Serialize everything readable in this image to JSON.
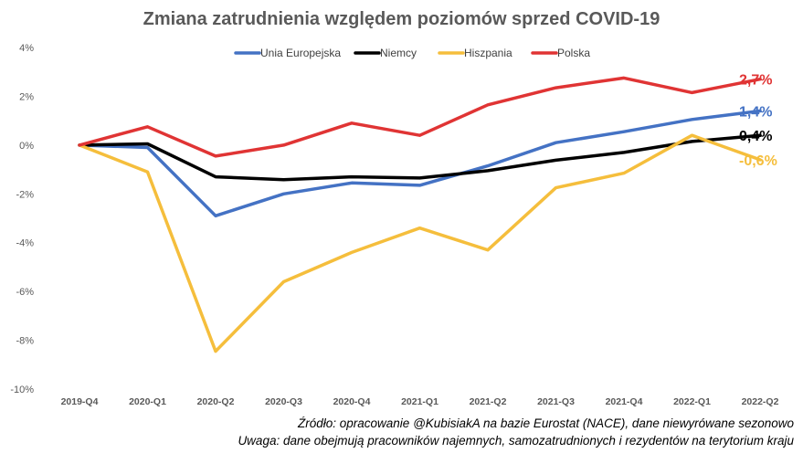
{
  "chart_data": {
    "type": "line",
    "title": "Zmiana zatrudnienia  względem poziomów sprzed COVID-19",
    "categories": [
      "2019-Q4",
      "2020-Q1",
      "2020-Q2",
      "2020-Q3",
      "2020-Q4",
      "2021-Q1",
      "2021-Q2",
      "2021-Q3",
      "2021-Q4",
      "2022-Q1",
      "2022-Q2"
    ],
    "ylim": [
      -10,
      4
    ],
    "yticks": [
      4,
      2,
      0,
      -2,
      -4,
      -6,
      -8,
      -10
    ],
    "ytick_labels": [
      "4%",
      "2%",
      "0%",
      "-2%",
      "-4%",
      "-6%",
      "-8%",
      "-10%"
    ],
    "grid": false,
    "legend_position": "top",
    "series": [
      {
        "name": "Unia Europejska",
        "color": "#4472c4",
        "values": [
          0,
          -0.1,
          -2.9,
          -2.0,
          -1.55,
          -1.65,
          -0.85,
          0.1,
          0.55,
          1.05,
          1.4
        ],
        "end_label": "1,4%"
      },
      {
        "name": "Niemcy",
        "color": "#000000",
        "values": [
          0,
          0.05,
          -1.3,
          -1.42,
          -1.3,
          -1.35,
          -1.05,
          -0.62,
          -0.3,
          0.15,
          0.4
        ],
        "end_label": "0,4%"
      },
      {
        "name": "Hiszpania",
        "color": "#f5be3c",
        "values": [
          0,
          -1.1,
          -8.45,
          -5.6,
          -4.4,
          -3.4,
          -4.3,
          -1.75,
          -1.15,
          0.4,
          -0.6
        ],
        "end_label": "-0,6%"
      },
      {
        "name": "Polska",
        "color": "#e03434",
        "values": [
          0,
          0.75,
          -0.45,
          0.0,
          0.9,
          0.4,
          1.65,
          2.35,
          2.75,
          2.15,
          2.7
        ],
        "end_label": "2,7%"
      }
    ]
  },
  "notes": {
    "source": "Źródło: opracowanie @KubisiakA na bazie Eurostat (NACE), dane niewyrówane sezonowo",
    "remark": "Uwaga: dane obejmują pracowników najemnych, samozatrudnionych i rezydentów na terytorium kraju"
  }
}
